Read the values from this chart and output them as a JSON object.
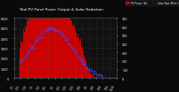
{
  "title": "Total PV Panel Power Output & Solar Radiation",
  "bg_color": "#0a0a0a",
  "plot_bg_color": "#111111",
  "grid_color": "#666666",
  "red_color": "#cc0000",
  "blue_color": "#4444ff",
  "ylim_left": [
    0,
    6000
  ],
  "ylim_right": [
    0,
    700
  ],
  "n_points": 300,
  "yticks_left": [
    0,
    1000,
    2000,
    3000,
    4000,
    5000,
    6000
  ],
  "yticks_right": [
    0,
    100,
    200,
    300,
    400,
    500,
    600,
    700
  ],
  "legend_pv": "PV Power (W)",
  "legend_rad": "Solar Rad (W/m²)"
}
